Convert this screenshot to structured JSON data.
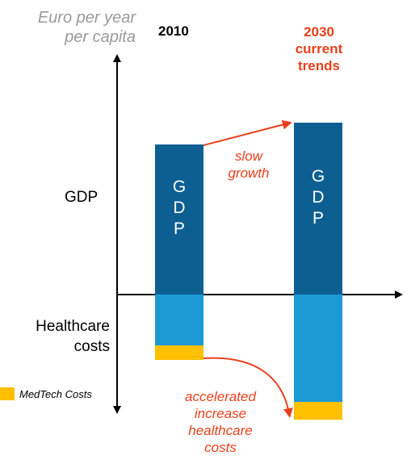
{
  "y_axis_label": [
    "Euro per year",
    "per capita"
  ],
  "year_2010": "2010",
  "year_2030": [
    "2030",
    "current",
    "trends"
  ],
  "gdp_label": "GDP",
  "healthcare_label": [
    "Healthcare",
    "costs"
  ],
  "legend": {
    "label": "MedTech Costs",
    "color": "#ffc000"
  },
  "bar_letters": [
    "G",
    "D",
    "P"
  ],
  "annotations": {
    "slow_growth": [
      "slow",
      "growth"
    ],
    "accelerated": [
      "accelerated",
      "increase",
      "healthcare",
      "costs"
    ]
  },
  "colors": {
    "gdp": "#0d5f92",
    "healthcare": "#1c9ad6",
    "medtech": "#ffc000",
    "accent": "#e8401c",
    "axis_label": "#9a9a9a"
  }
}
